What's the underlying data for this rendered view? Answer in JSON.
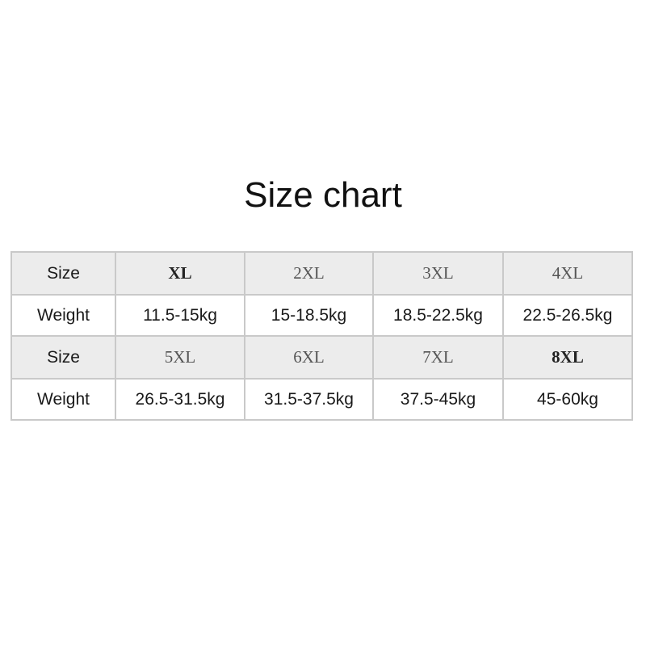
{
  "title": "Size chart",
  "table": {
    "size_label": "Size",
    "weight_label": "Weight",
    "rows": [
      {
        "sizes": [
          "XL",
          "2XL",
          "3XL",
          "4XL"
        ],
        "weights": [
          "11.5-15kg",
          "15-18.5kg",
          "18.5-22.5kg",
          "22.5-26.5kg"
        ]
      },
      {
        "sizes": [
          "5XL",
          "6XL",
          "7XL",
          "8XL"
        ],
        "weights": [
          "26.5-31.5kg",
          "31.5-37.5kg",
          "37.5-45kg",
          "45-60kg"
        ]
      }
    ]
  },
  "colors": {
    "header_bg": "#ececec",
    "border": "#c9c9c9"
  }
}
